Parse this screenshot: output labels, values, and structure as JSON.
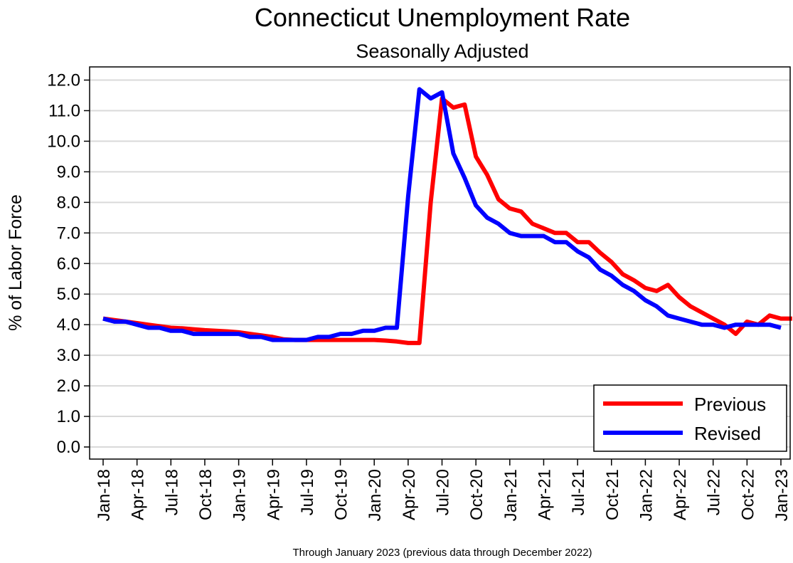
{
  "chart_data": {
    "type": "line",
    "title": "Connecticut Unemployment Rate",
    "subtitle": "Seasonally Adjusted",
    "ylabel": "% of Labor Force",
    "xlabel": "",
    "note": "Through January 2023 (previous data through December 2022)",
    "ylim": [
      0,
      12.0
    ],
    "yticks": [
      "0.0",
      "1.0",
      "2.0",
      "3.0",
      "4.0",
      "5.0",
      "6.0",
      "7.0",
      "8.0",
      "9.0",
      "10.0",
      "11.0",
      "12.0"
    ],
    "xtick_labels": [
      "Jan-18",
      "Apr-18",
      "Jul-18",
      "Oct-18",
      "Jan-19",
      "Apr-19",
      "Jul-19",
      "Oct-19",
      "Jan-20",
      "Apr-20",
      "Jul-20",
      "Oct-20",
      "Jan-21",
      "Apr-21",
      "Jul-21",
      "Oct-21",
      "Jan-22",
      "Apr-22",
      "Jul-22",
      "Oct-22",
      "Jan-23"
    ],
    "x_start": "Jan-2018",
    "x_frequency": "monthly",
    "grid": "horizontal",
    "legend_position": "bottom-right",
    "series": [
      {
        "name": "Previous",
        "color": "#ff0000",
        "values": [
          4.2,
          4.15,
          4.1,
          4.05,
          4.0,
          3.95,
          3.9,
          3.88,
          3.85,
          3.82,
          3.8,
          3.78,
          3.75,
          3.7,
          3.65,
          3.6,
          3.52,
          3.5,
          3.5,
          3.5,
          3.5,
          3.5,
          3.5,
          3.5,
          3.5,
          3.48,
          3.45,
          3.4,
          3.4,
          8.0,
          11.4,
          11.1,
          11.2,
          9.5,
          8.9,
          8.1,
          7.8,
          7.7,
          7.3,
          7.15,
          7.0,
          7.0,
          6.7,
          6.7,
          6.35,
          6.05,
          5.65,
          5.45,
          5.2,
          5.1,
          5.3,
          4.9,
          4.6,
          4.4,
          4.2,
          4.0,
          3.7,
          4.1,
          4.0,
          4.3,
          4.2,
          4.2
        ]
      },
      {
        "name": "Revised",
        "color": "#0000ff",
        "values": [
          4.2,
          4.1,
          4.1,
          4.0,
          3.9,
          3.9,
          3.8,
          3.8,
          3.7,
          3.7,
          3.7,
          3.7,
          3.7,
          3.6,
          3.6,
          3.5,
          3.5,
          3.5,
          3.5,
          3.6,
          3.6,
          3.7,
          3.7,
          3.8,
          3.8,
          3.9,
          3.9,
          8.2,
          11.7,
          11.4,
          11.6,
          9.6,
          8.8,
          7.9,
          7.5,
          7.3,
          7.0,
          6.9,
          6.9,
          6.9,
          6.7,
          6.7,
          6.4,
          6.2,
          5.8,
          5.6,
          5.3,
          5.1,
          4.8,
          4.6,
          4.3,
          4.2,
          4.1,
          4.0,
          4.0,
          3.9,
          4.0,
          4.0,
          4.0,
          4.0,
          3.9
        ]
      }
    ]
  }
}
